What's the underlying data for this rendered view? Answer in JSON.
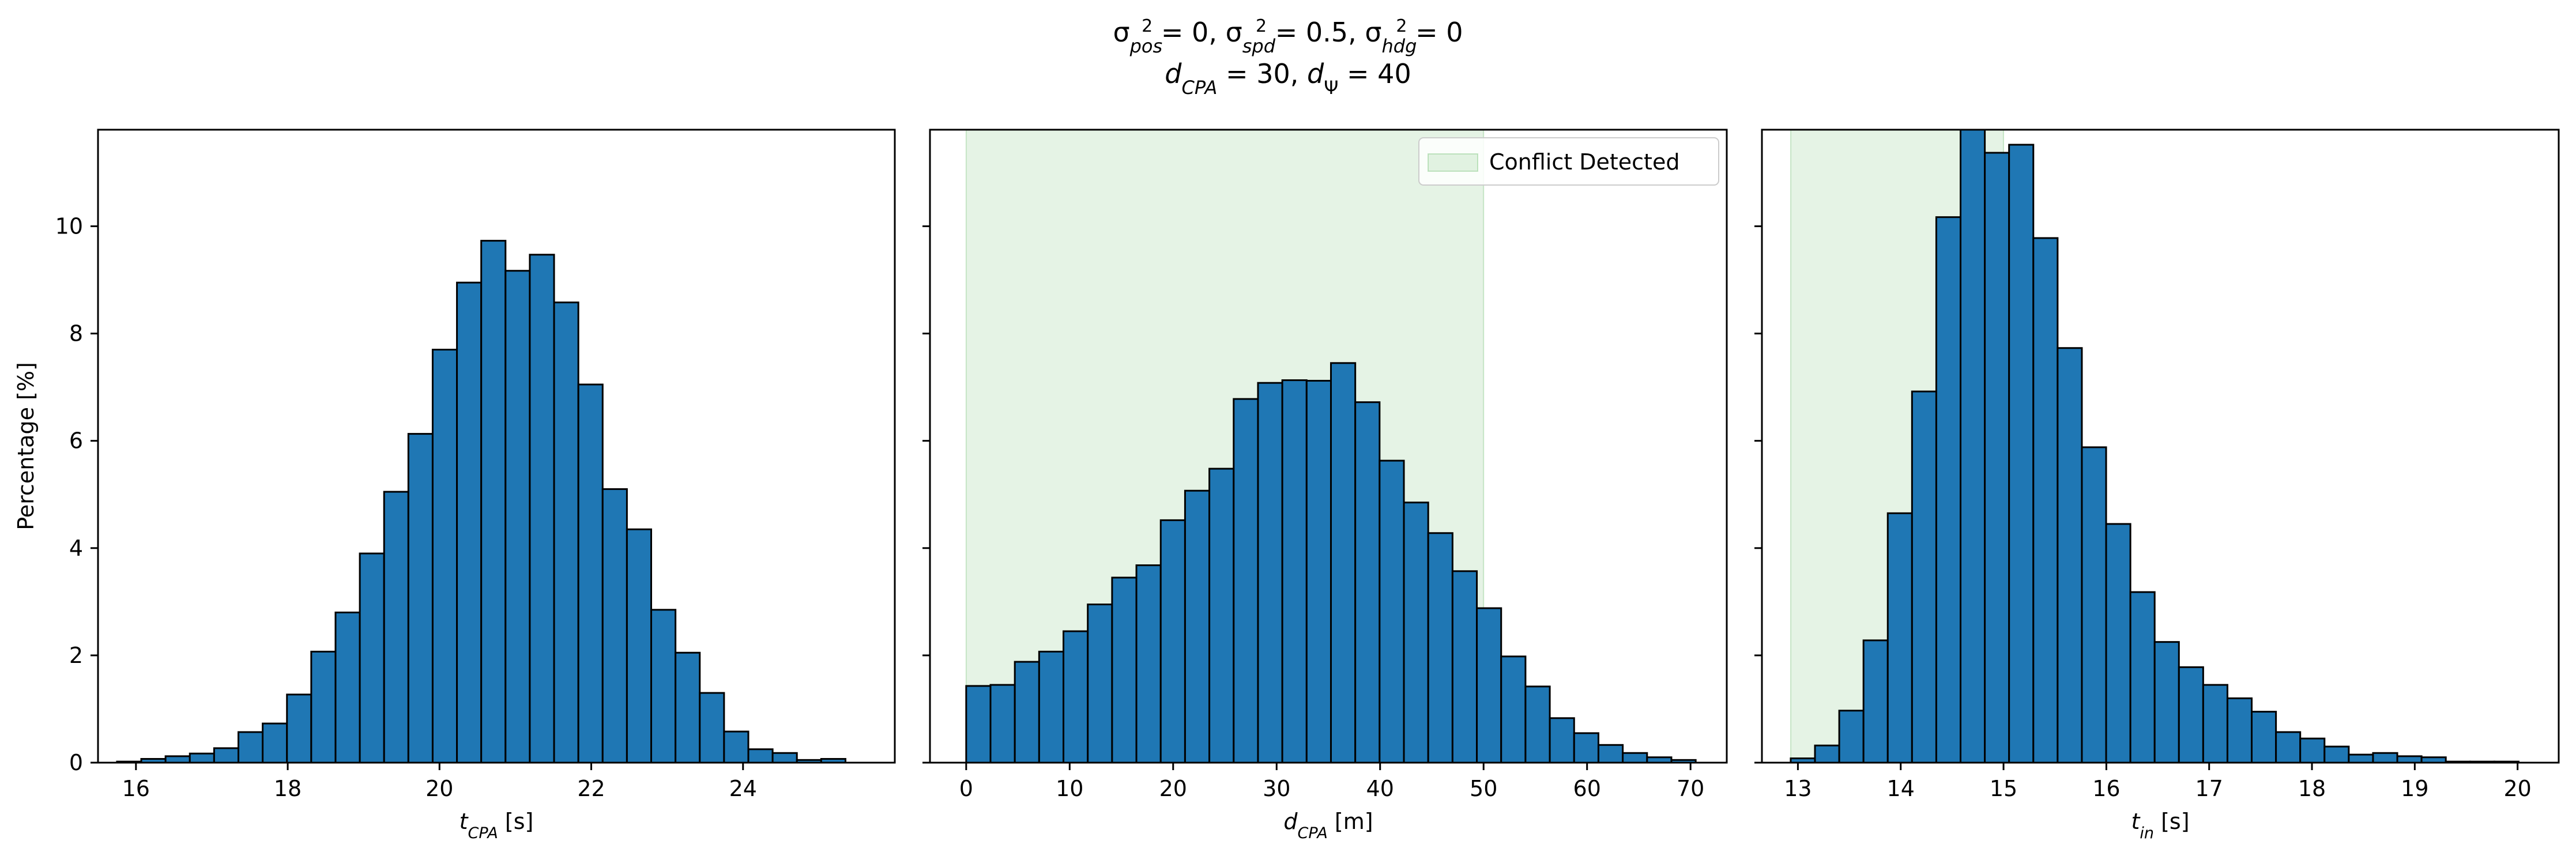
{
  "figure": {
    "title_line1": {
      "sigma": "σ",
      "pos": "pos",
      "pos_val": " = 0, ",
      "spd": "spd",
      "spd_val": " = 0.5, ",
      "hdg": "hdg",
      "hdg_val": " = 0",
      "sup": "2"
    },
    "title_line2": {
      "d": "d",
      "cpa": "CPA",
      "cpa_val": " = 30, ",
      "psi": "Ψ",
      "psi_val": " = 40"
    }
  },
  "colors": {
    "bar": "#1f77b4",
    "edge": "#000000",
    "band": "#2ca02c"
  },
  "chart_data": [
    {
      "type": "bar",
      "ylabel": "Percentage [%]",
      "xlabel": {
        "var": "t",
        "sub": "CPA",
        "unit": " [s]"
      },
      "xlim": [
        15.5,
        26.0
      ],
      "ylim": [
        0,
        11.8
      ],
      "xticks": [
        16,
        18,
        20,
        22,
        24
      ],
      "yticks": [
        0,
        2,
        4,
        6,
        8,
        10
      ],
      "bin_width": 0.32,
      "bin_start": 15.75,
      "values": [
        0.02,
        0.07,
        0.12,
        0.17,
        0.27,
        0.57,
        0.73,
        1.27,
        2.07,
        2.8,
        3.9,
        5.05,
        6.13,
        7.7,
        8.95,
        9.73,
        9.17,
        9.47,
        8.58,
        7.05,
        5.1,
        4.35,
        2.85,
        2.05,
        1.3,
        0.58,
        0.25,
        0.18,
        0.05,
        0.07
      ],
      "highlight": null
    },
    {
      "type": "bar",
      "ylabel": "",
      "xlabel": {
        "var": "d",
        "sub": "CPA",
        "unit": " [m]"
      },
      "xlim": [
        -3.5,
        73.5
      ],
      "ylim": [
        0,
        11.8
      ],
      "xticks": [
        0,
        10,
        20,
        30,
        40,
        50,
        60,
        70
      ],
      "yticks": [
        0,
        2,
        4,
        6,
        8,
        10
      ],
      "bin_width": 2.35,
      "bin_start": 0.0,
      "values": [
        1.43,
        1.45,
        1.88,
        2.07,
        2.45,
        2.95,
        3.45,
        3.68,
        4.52,
        5.07,
        5.48,
        6.78,
        7.08,
        7.13,
        7.12,
        7.45,
        6.72,
        5.63,
        4.85,
        4.28,
        3.57,
        2.88,
        1.98,
        1.42,
        0.83,
        0.55,
        0.33,
        0.18,
        0.1,
        0.05
      ],
      "highlight": {
        "from": 0,
        "to": 50,
        "label": "Conflict Detected",
        "legend": "top-right"
      }
    },
    {
      "type": "bar",
      "ylabel": "",
      "xlabel": {
        "var": "t",
        "sub": "in",
        "unit": " [s]"
      },
      "xlim": [
        12.65,
        20.4
      ],
      "ylim": [
        0,
        11.8
      ],
      "xticks": [
        13,
        14,
        15,
        16,
        17,
        18,
        19,
        20
      ],
      "yticks": [
        0,
        2,
        4,
        6,
        8,
        10
      ],
      "bin_width": 0.236,
      "bin_start": 12.93,
      "values": [
        0.08,
        0.32,
        0.97,
        2.28,
        4.65,
        6.92,
        10.17,
        11.93,
        11.37,
        11.52,
        9.78,
        7.73,
        5.88,
        4.45,
        3.18,
        2.25,
        1.78,
        1.45,
        1.2,
        0.95,
        0.57,
        0.45,
        0.3,
        0.15,
        0.18,
        0.12,
        0.1,
        0.02,
        0.02,
        0.02
      ],
      "highlight": {
        "from": 12.93,
        "to": 15.0,
        "label": "",
        "legend": ""
      }
    }
  ]
}
